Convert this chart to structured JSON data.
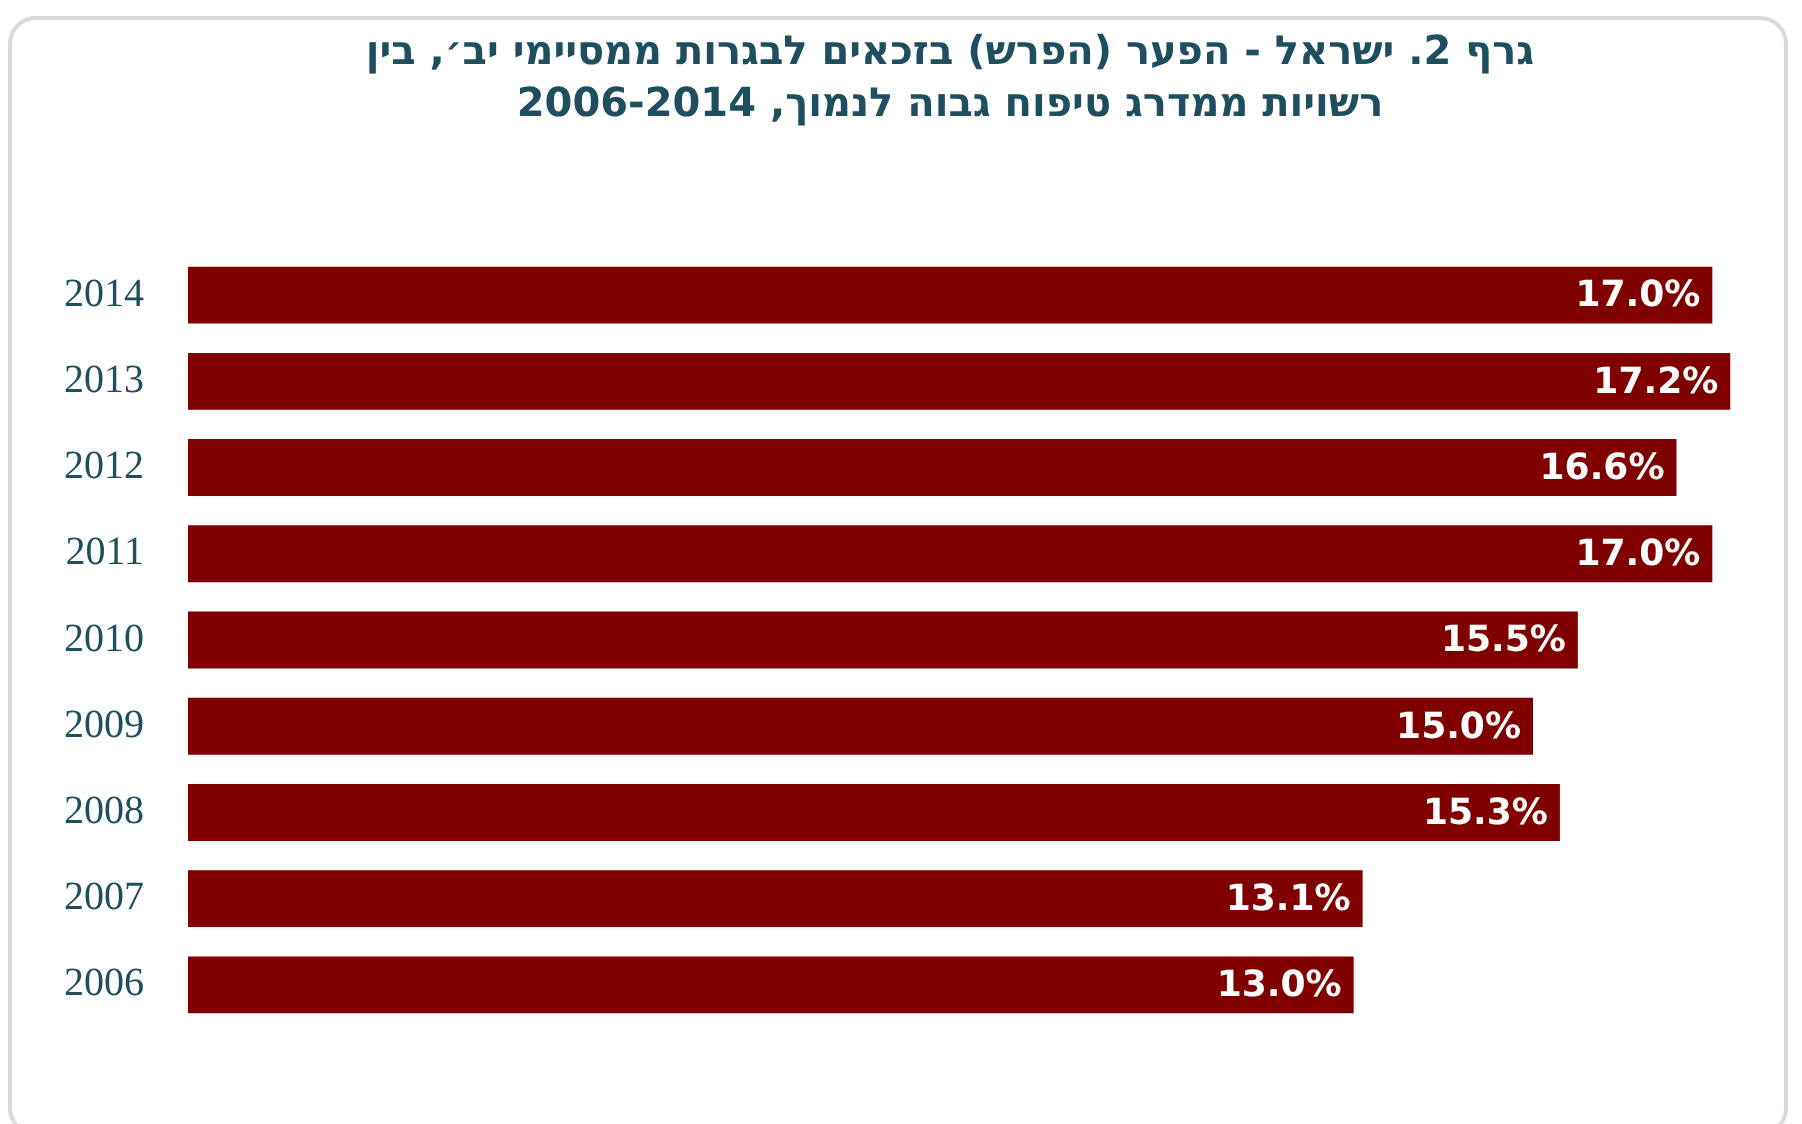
{
  "chart_data": {
    "type": "bar",
    "orientation": "horizontal",
    "title": "גרף 2. ישראל - הפער (הפרש) בזכאים לבגרות ממסיימי יב׳, בין רשויות ממדרג טיפוח גבוה לנמוך, 2006-2014",
    "categories": [
      "2014",
      "2013",
      "2012",
      "2011",
      "2010",
      "2009",
      "2008",
      "2007",
      "2006"
    ],
    "values": [
      17.0,
      17.2,
      16.6,
      17.0,
      15.5,
      15.0,
      15.3,
      13.1,
      13.0
    ],
    "value_labels": [
      "17.0%",
      "17.2%",
      "16.6%",
      "17.0%",
      "15.5%",
      "15.0%",
      "15.3%",
      "13.1%",
      "13.0%"
    ],
    "color": "#800000",
    "tick_labels": "y",
    "legend": false
  }
}
